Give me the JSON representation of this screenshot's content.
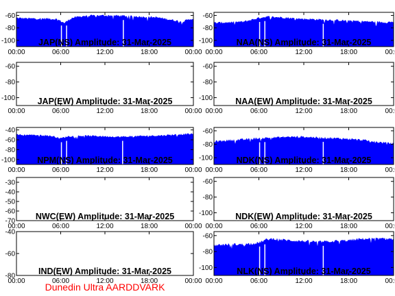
{
  "footer_text": "Dunedin Ultra AARDDVARK",
  "colors": {
    "fill": "#0000ff",
    "axis": "#000000",
    "footer": "#ff0000"
  },
  "chart_data": [
    {
      "type": "area",
      "title": "JAP(NS) Amplitude: 31-Mar-2025",
      "xlim": [
        "00:00",
        "24:00"
      ],
      "xticks": [
        "00:00",
        "06:00",
        "12:00",
        "18:00",
        "00:00"
      ],
      "ylim": [
        -110,
        -55
      ],
      "yticks": [
        -60,
        -80,
        -100
      ],
      "x_hours": [
        0,
        2,
        4,
        5.5,
        6.5,
        7.5,
        9,
        11,
        13,
        15,
        17,
        19,
        21,
        22.5,
        23.5,
        24
      ],
      "values": [
        -64,
        -65,
        -65,
        -66,
        -72,
        -64,
        -61,
        -60,
        -60,
        -61,
        -62,
        -63,
        -67,
        -70,
        -66,
        -65
      ],
      "dropouts_hours": [
        6.1,
        6.8,
        14.5
      ]
    },
    {
      "type": "area",
      "title": "NAA(NS) Amplitude: 31-Mar-2025",
      "xlim": [
        "00:00",
        "24:00"
      ],
      "xticks": [
        "00:00",
        "06:00",
        "12:00",
        "18:00",
        "00:00"
      ],
      "ylim": [
        -110,
        -55
      ],
      "yticks": [
        -60,
        -80,
        -100
      ],
      "x_hours": [
        0,
        2,
        4,
        5,
        6,
        7,
        9,
        11,
        13,
        15,
        17,
        19,
        21,
        23,
        24
      ],
      "values": [
        -72,
        -71,
        -70,
        -67,
        -64,
        -62,
        -63,
        -65,
        -66,
        -67,
        -68,
        -69,
        -70,
        -71,
        -70
      ],
      "dropouts_hours": [
        6.1,
        6.8,
        14.6
      ]
    },
    {
      "type": "area",
      "title": "JAP(EW) Amplitude: 31-Mar-2025",
      "xlim": [
        "00:00",
        "24:00"
      ],
      "xticks": [
        "00:00",
        "06:00",
        "12:00",
        "18:00",
        "00:00"
      ],
      "ylim": [
        -110,
        -55
      ],
      "yticks": [
        -60,
        -80,
        -100
      ],
      "x_hours": [],
      "values": [],
      "dropouts_hours": []
    },
    {
      "type": "area",
      "title": "NAA(EW) Amplitude: 31-Mar-2025",
      "xlim": [
        "00:00",
        "24:00"
      ],
      "xticks": [
        "00:00",
        "06:00",
        "12:00",
        "18:00",
        "00:00"
      ],
      "ylim": [
        -110,
        -55
      ],
      "yticks": [
        -60,
        -80,
        -100
      ],
      "x_hours": [],
      "values": [],
      "dropouts_hours": []
    },
    {
      "type": "area",
      "title": "NPM(NS) Amplitude: 31-Mar-2025",
      "xlim": [
        "00:00",
        "24:00"
      ],
      "xticks": [
        "00:00",
        "06:00",
        "12:00",
        "18:00",
        "00:00"
      ],
      "ylim": [
        -110,
        -35
      ],
      "yticks": [
        -40,
        -60,
        -80,
        -100
      ],
      "x_hours": [
        0,
        2,
        4,
        5,
        6,
        7,
        8,
        10,
        12,
        14,
        16,
        18,
        20,
        22,
        24
      ],
      "values": [
        -50,
        -50,
        -51,
        -53,
        -57,
        -53,
        -52,
        -52,
        -53,
        -54,
        -53,
        -52,
        -51,
        -49,
        -48
      ],
      "dropouts_hours": [
        6.1,
        6.8,
        14.4
      ]
    },
    {
      "type": "area",
      "title": "NDK(NS) Amplitude: 31-Mar-2025",
      "xlim": [
        "00:00",
        "24:00"
      ],
      "xticks": [
        "00:00",
        "06:00",
        "12:00",
        "18:00",
        "00:00"
      ],
      "ylim": [
        -110,
        -55
      ],
      "yticks": [
        -60,
        -80,
        -100
      ],
      "x_hours": [
        0,
        2,
        4,
        6,
        8,
        10,
        12,
        14,
        16,
        18,
        20,
        22,
        24
      ],
      "values": [
        -76,
        -74,
        -73,
        -71,
        -70,
        -69,
        -69,
        -70,
        -71,
        -72,
        -74,
        -77,
        -79
      ],
      "dropouts_hours": [
        6.1,
        6.8,
        14.6
      ]
    },
    {
      "type": "area",
      "title": "NWC(EW) Amplitude: 31-Mar-2025",
      "xlim": [
        "00:00",
        "24:00"
      ],
      "xticks": [
        "00:00",
        "06:00",
        "12:00",
        "18:00",
        "00:00"
      ],
      "ylim": [
        -70,
        -25
      ],
      "yticks": [
        -30,
        -40,
        -50,
        -60,
        -70
      ],
      "x_hours": [],
      "values": [],
      "dropouts_hours": []
    },
    {
      "type": "area",
      "title": "NDK(EW) Amplitude: 31-Mar-2025",
      "xlim": [
        "00:00",
        "24:00"
      ],
      "xticks": [
        "00:00",
        "06:00",
        "12:00",
        "18:00",
        "00:00"
      ],
      "ylim": [
        -110,
        -55
      ],
      "yticks": [
        -60,
        -80,
        -100
      ],
      "x_hours": [],
      "values": [],
      "dropouts_hours": []
    },
    {
      "type": "area",
      "title": "IND(EW) Amplitude: 31-Mar-2025",
      "xlim": [
        "00:00",
        "24:00"
      ],
      "xticks": [
        "00:00",
        "06:00",
        "12:00",
        "18:00",
        "00:00"
      ],
      "ylim": [
        -80,
        -40
      ],
      "yticks": [
        -40,
        -60,
        -80
      ],
      "x_hours": [],
      "values": [],
      "dropouts_hours": []
    },
    {
      "type": "area",
      "title": "NLK(NS) Amplitude: 31-Mar-2025",
      "xlim": [
        "00:00",
        "24:00"
      ],
      "xticks": [
        "00:00",
        "06:00",
        "12:00",
        "18:00",
        "00:00"
      ],
      "ylim": [
        -110,
        -55
      ],
      "yticks": [
        -60,
        -80,
        -100
      ],
      "x_hours": [
        0,
        2,
        4,
        5,
        6,
        7,
        8,
        10,
        12,
        14,
        16,
        18,
        20,
        22,
        24
      ],
      "values": [
        -72,
        -71,
        -71,
        -70,
        -69,
        -65,
        -64,
        -66,
        -67,
        -68,
        -67,
        -66,
        -64,
        -64,
        -64
      ],
      "dropouts_hours": [
        6.1,
        6.8,
        14.6
      ]
    }
  ]
}
